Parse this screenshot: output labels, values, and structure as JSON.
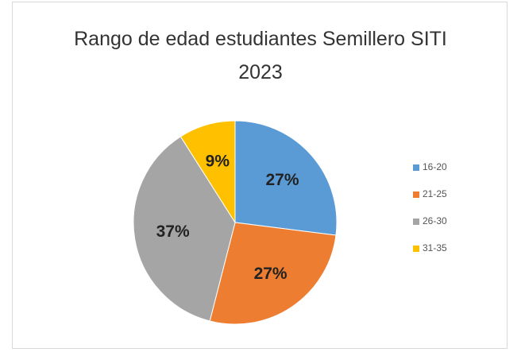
{
  "chart_data": {
    "type": "pie",
    "title": "Rango de edad estudiantes Semillero SITI 2023",
    "categories": [
      "16-20",
      "21-25",
      "26-30",
      "31-35"
    ],
    "values": [
      27,
      27,
      37,
      9
    ],
    "value_labels": [
      "27%",
      "27%",
      "37%",
      "9%"
    ],
    "colors": [
      "#5b9bd5",
      "#ed7d31",
      "#a5a5a5",
      "#ffc000"
    ],
    "legend": "right"
  }
}
